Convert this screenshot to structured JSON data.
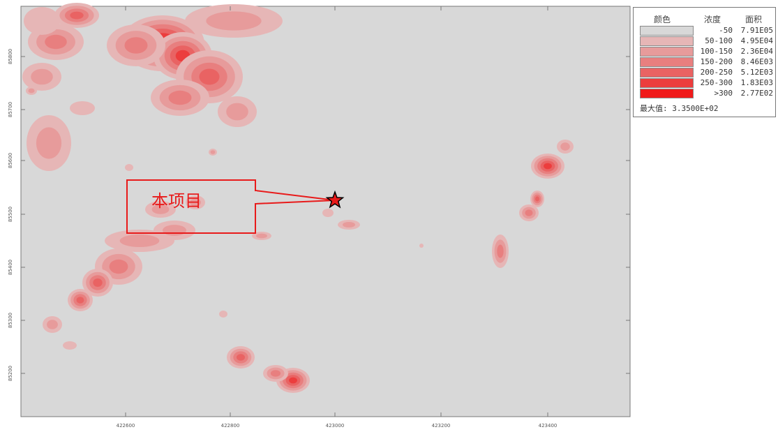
{
  "map": {
    "background_color": "#d8d8d8",
    "plume_colors": [
      "#e6b6b6",
      "#e79b9b",
      "#e87f7f",
      "#e96363",
      "#ec3d3d",
      "#f01a1a"
    ],
    "x_ticks": [
      "422600",
      "422800",
      "423000",
      "423200",
      "423400"
    ],
    "y_ticks": [
      "85800",
      "85700",
      "85600",
      "85500",
      "85400",
      "85300",
      "85200"
    ]
  },
  "callout": {
    "label": "本项目",
    "marker_icon": "star-icon",
    "marker_color": "#e81a1a"
  },
  "legend": {
    "headers": {
      "color": "颜色",
      "concentration": "浓度",
      "area": "面积"
    },
    "rows": [
      {
        "range": "-50",
        "area": "7.91E05",
        "color": "#d8d8d8"
      },
      {
        "range": "50-100",
        "area": "4.95E04",
        "color": "#e6b6b6"
      },
      {
        "range": "100-150",
        "area": "2.36E04",
        "color": "#e79b9b"
      },
      {
        "range": "150-200",
        "area": "8.46E03",
        "color": "#e87f7f"
      },
      {
        "range": "200-250",
        "area": "5.12E03",
        "color": "#e96363"
      },
      {
        "range": "250-300",
        "area": "1.83E03",
        "color": "#ec3d3d"
      },
      {
        "range": ">300",
        "area": "2.77E02",
        "color": "#f01a1a"
      }
    ],
    "max_value": "最大值: 3.3500E+02"
  }
}
